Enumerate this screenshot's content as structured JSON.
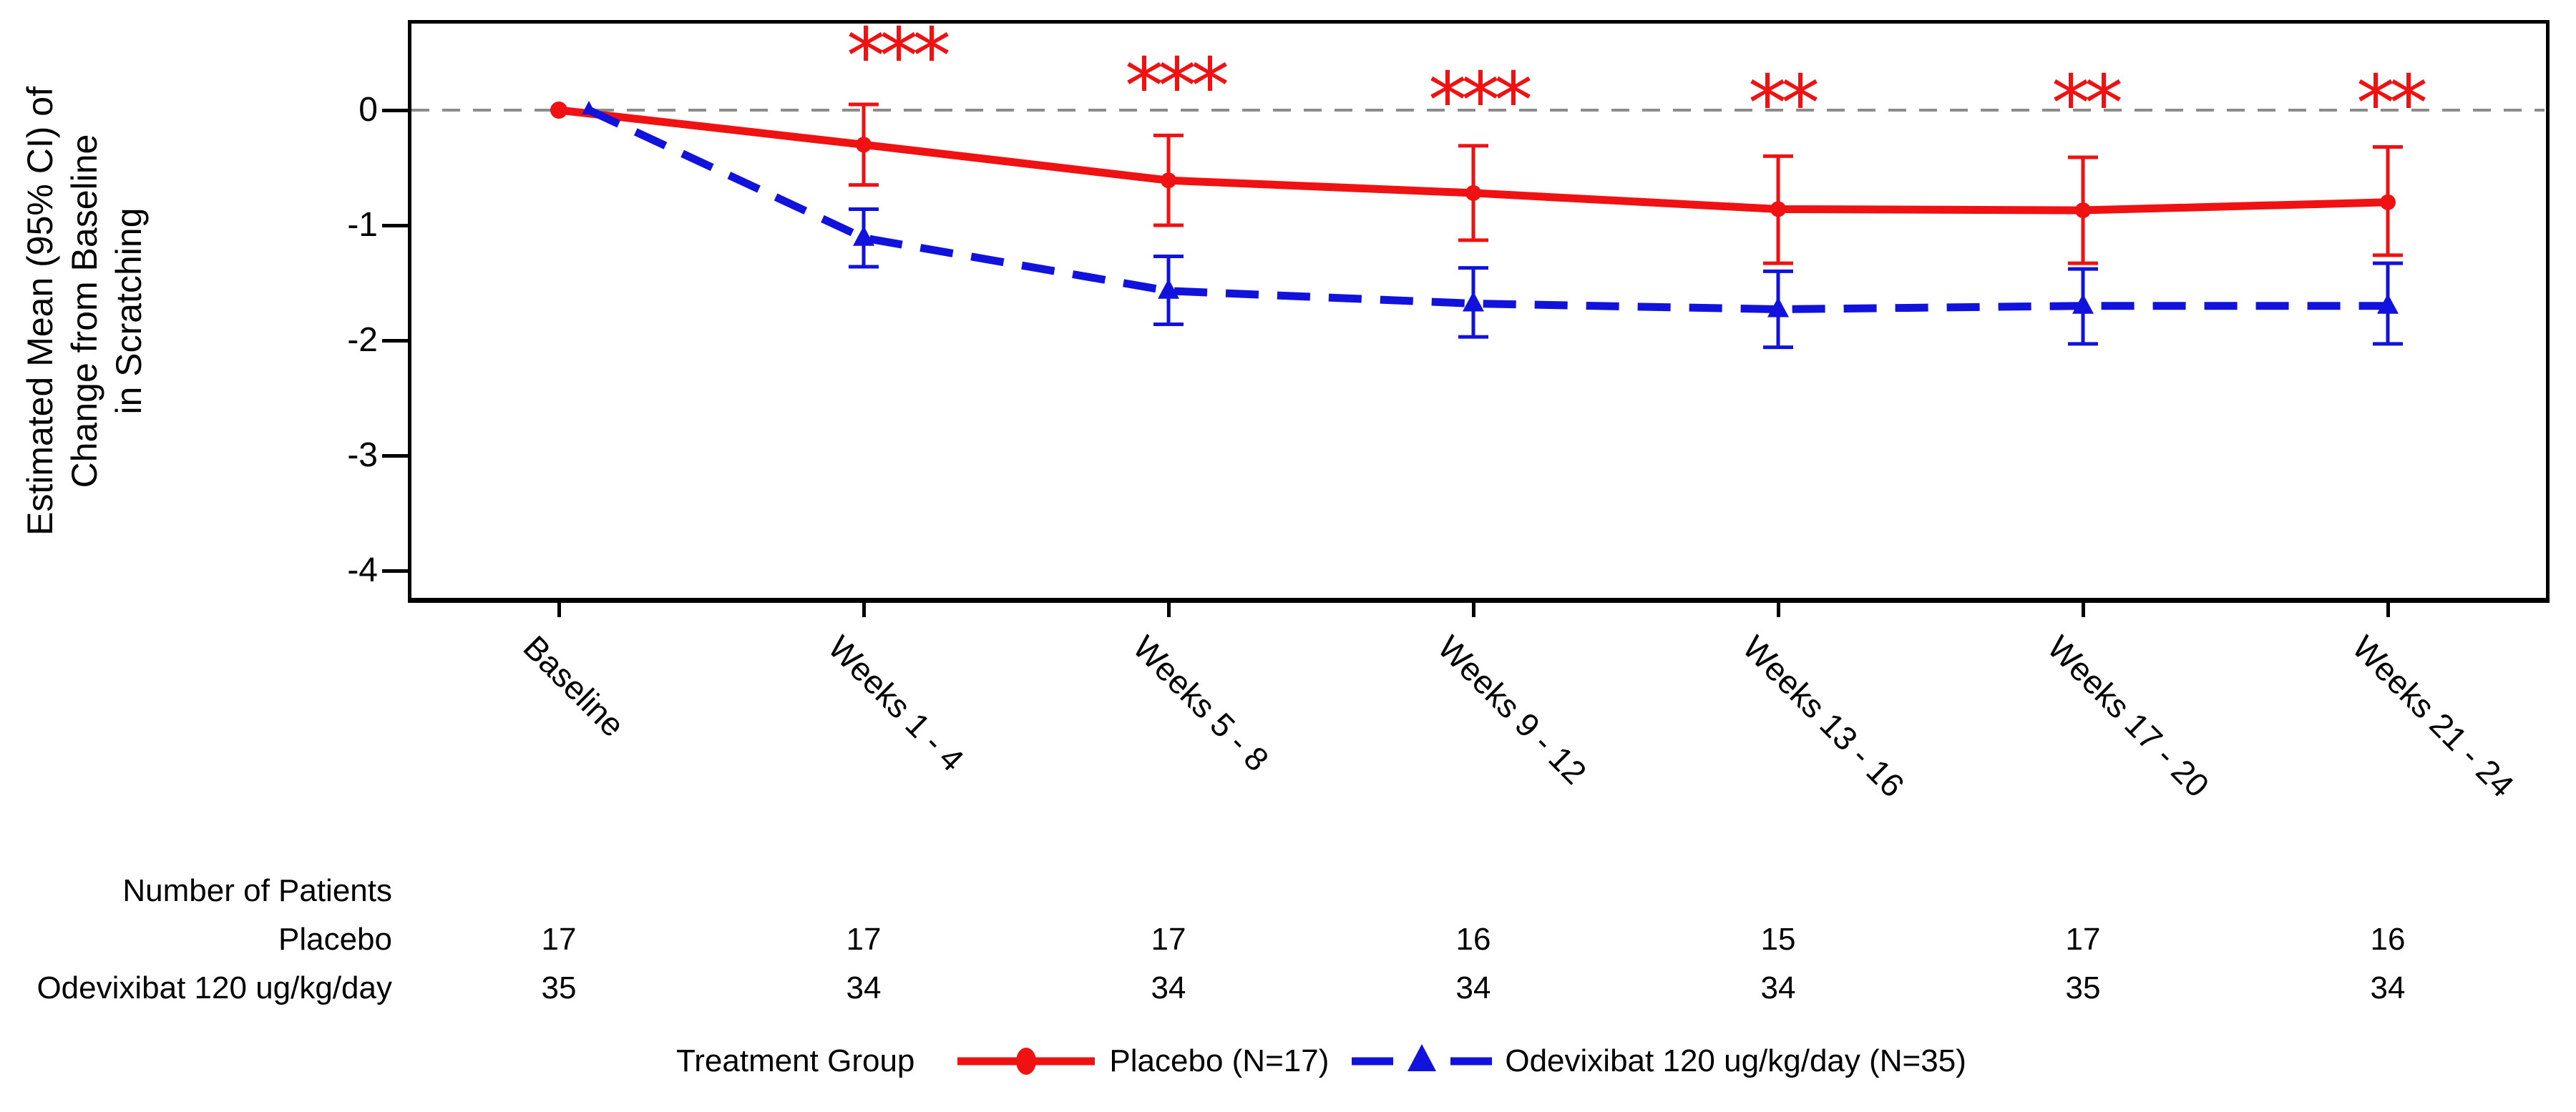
{
  "chart_data": {
    "type": "line",
    "title": "",
    "ylabel_lines": [
      "Estimated Mean (95% CI) of",
      "Change from Baseline",
      "in Scratching"
    ],
    "yticks": [
      "0",
      "-1",
      "-2",
      "-3",
      "-4"
    ],
    "ylim": [
      -4.45,
      0.75
    ],
    "zero_reference_line": true,
    "grid": "off",
    "legend_position": "bottom",
    "categories": [
      "Baseline",
      "Weeks 1 - 4",
      "Weeks 5 - 8",
      "Weeks 9 - 12",
      "Weeks 13 - 16",
      "Weeks 17 - 20",
      "Weeks 21 - 24"
    ],
    "series": [
      {
        "name": "Placebo (N=17)",
        "color": "#f01112",
        "line_style": "solid",
        "marker": "circle",
        "values": [
          0,
          -0.3,
          -0.61,
          -0.72,
          -0.86,
          -0.87,
          -0.8
        ],
        "ci_upper": [
          null,
          0.05,
          -0.22,
          -0.31,
          -0.4,
          -0.41,
          -0.32
        ],
        "ci_lower": [
          null,
          -0.65,
          -1.0,
          -1.13,
          -1.33,
          -1.33,
          -1.26
        ]
      },
      {
        "name": "Odevixibat 120 ug/kg/day (N=35)",
        "color": "#1212dd",
        "line_style": "dashed",
        "marker": "triangle",
        "values": [
          0,
          -1.11,
          -1.57,
          -1.68,
          -1.73,
          -1.7,
          -1.7
        ],
        "ci_upper": [
          null,
          -0.86,
          -1.27,
          -1.37,
          -1.4,
          -1.38,
          -1.33
        ],
        "ci_lower": [
          null,
          -1.36,
          -1.86,
          -1.97,
          -2.06,
          -2.03,
          -2.03
        ]
      }
    ],
    "significance": {
      "color": "#f01112",
      "stars": [
        "",
        "***",
        "***",
        "***",
        "**",
        "**",
        "**"
      ]
    },
    "zero_line_color": "#8c8c8c"
  },
  "patients_table": {
    "title": "Number of Patients",
    "rows": [
      {
        "label": "Placebo",
        "counts": [
          "17",
          "17",
          "17",
          "16",
          "15",
          "17",
          "16"
        ]
      },
      {
        "label": "Odevixibat 120 ug/kg/day",
        "counts": [
          "35",
          "34",
          "34",
          "34",
          "34",
          "35",
          "34"
        ]
      }
    ]
  },
  "legend": {
    "title": "Treatment Group",
    "items": [
      {
        "label": "Placebo (N=17)"
      },
      {
        "label": "Odevixibat 120 ug/kg/day (N=35)"
      }
    ]
  }
}
